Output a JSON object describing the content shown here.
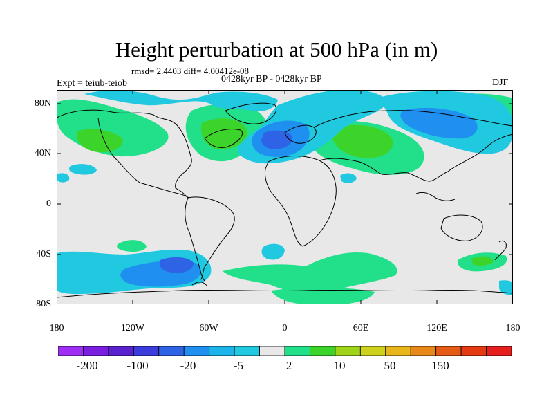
{
  "title": "Height perturbation at 500 hPa (in m)",
  "stats": "rmsd= 2.4403 diff= 4.00412e-08",
  "period": "0428kyr BP - 0428kyr BP",
  "experiment": "Expt = teiub-teiob",
  "season": "DJF",
  "lat_ticks": [
    "80N",
    "40N",
    "0",
    "40S",
    "80S"
  ],
  "lon_ticks": [
    "180",
    "120W",
    "60W",
    "0",
    "60E",
    "120E",
    "180"
  ],
  "colorbar": {
    "colors": [
      "#9f2ef5",
      "#7a1fe0",
      "#5a22cf",
      "#3c3cdc",
      "#2e63e6",
      "#1f8ff0",
      "#1cb4ea",
      "#20c8e0",
      "#e8e8e8",
      "#22e08a",
      "#3cd42a",
      "#9fd419",
      "#cfd21c",
      "#e8b51a",
      "#e88818",
      "#e55a14",
      "#e43a12",
      "#e51e1e"
    ],
    "labels": [
      "-200",
      "-100",
      "-20",
      "-5",
      "2",
      "10",
      "50",
      "150"
    ]
  },
  "field_colors": {
    "background": "#e8e8e8",
    "weak_positive": "#22e08a",
    "moderate_positive": "#3cd42a",
    "weak_negative": "#20c8e0",
    "moderate_negative": "#1f8ff0",
    "strong_negative": "#2e63e6"
  }
}
